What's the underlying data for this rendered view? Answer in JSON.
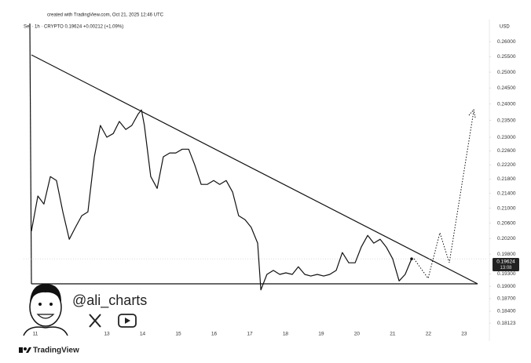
{
  "chart_data": {
    "type": "line",
    "title": "created with TradingView.com, Oct 21, 2025 12:46 UTC",
    "subtitle": "Sei · 1h · CRYPTO  0.19624  +0.00212 (+1.09%)",
    "currency": "USD",
    "last_price_label": "0.19624",
    "countdown": "13:08",
    "watermark": "@ali_charts",
    "brand": "TradingView",
    "log_scale": true,
    "x": [
      10.89,
      11.07,
      11.24,
      11.42,
      11.59,
      11.77,
      11.95,
      12.12,
      12.3,
      12.47,
      12.65,
      12.82,
      13.0,
      13.18,
      13.35,
      13.53,
      13.7,
      13.88,
      13.97,
      14.05,
      14.23,
      14.41,
      14.58,
      14.76,
      14.93,
      15.11,
      15.29,
      15.46,
      15.64,
      15.81,
      15.99,
      16.16,
      16.34,
      16.52,
      16.69,
      16.87,
      17.04,
      17.22,
      17.31,
      17.48,
      17.66,
      17.84,
      18.01,
      18.19,
      18.36,
      18.54,
      18.71,
      18.89,
      19.07,
      19.24,
      19.42,
      19.59,
      19.77,
      19.95,
      20.12,
      20.3,
      20.47,
      20.65,
      20.82,
      21.0,
      21.18,
      21.35,
      21.53
    ],
    "series": [
      {
        "name": "Sei",
        "color": "#111111",
        "values": [
          0.2039,
          0.2133,
          0.2111,
          0.2187,
          0.2176,
          0.209,
          0.2018,
          0.2049,
          0.208,
          0.209,
          0.2243,
          0.2335,
          0.23,
          0.2311,
          0.2347,
          0.2323,
          0.2335,
          0.237,
          0.2382,
          0.2335,
          0.2187,
          0.2154,
          0.2243,
          0.2254,
          0.2254,
          0.2265,
          0.2265,
          0.222,
          0.2165,
          0.2165,
          0.2176,
          0.2165,
          0.2176,
          0.2144,
          0.208,
          0.2069,
          0.2049,
          0.2008,
          0.1891,
          0.1929,
          0.1939,
          0.1929,
          0.1933,
          0.1929,
          0.1948,
          0.1929,
          0.1925,
          0.1929,
          0.1925,
          0.1929,
          0.1939,
          0.1984,
          0.1958,
          0.1958,
          0.1998,
          0.2028,
          0.2008,
          0.2018,
          0.1998,
          0.1968,
          0.1913,
          0.1929,
          0.1968
        ]
      }
    ],
    "xlim": [
      10.67,
      23.64
    ],
    "xticks": [
      11,
      13,
      14,
      15,
      16,
      17,
      18,
      19,
      20,
      21,
      22,
      23
    ],
    "ylim": [
      0.178,
      0.2661
    ],
    "yticks": [
      {
        "value": 0.26,
        "label": "0.26000"
      },
      {
        "value": 0.255,
        "label": "0.25500"
      },
      {
        "value": 0.25,
        "label": "0.25000"
      },
      {
        "value": 0.245,
        "label": "0.24500"
      },
      {
        "value": 0.24,
        "label": "0.24000"
      },
      {
        "value": 0.235,
        "label": "0.23500"
      },
      {
        "value": 0.23,
        "label": "0.23000"
      },
      {
        "value": 0.226,
        "label": "0.22600"
      },
      {
        "value": 0.222,
        "label": "0.22200"
      },
      {
        "value": 0.218,
        "label": "0.21800"
      },
      {
        "value": 0.214,
        "label": "0.21400"
      },
      {
        "value": 0.21,
        "label": "0.21000"
      },
      {
        "value": 0.206,
        "label": "0.20600"
      },
      {
        "value": 0.202,
        "label": "0.20200"
      },
      {
        "value": 0.198,
        "label": "0.19800"
      },
      {
        "value": 0.193,
        "label": "0.19300"
      },
      {
        "value": 0.19,
        "label": "0.19000"
      },
      {
        "value": 0.187,
        "label": "0.18700"
      },
      {
        "value": 0.184,
        "label": "0.18400"
      },
      {
        "value": 0.18123,
        "label": "0.18123"
      }
    ]
  }
}
